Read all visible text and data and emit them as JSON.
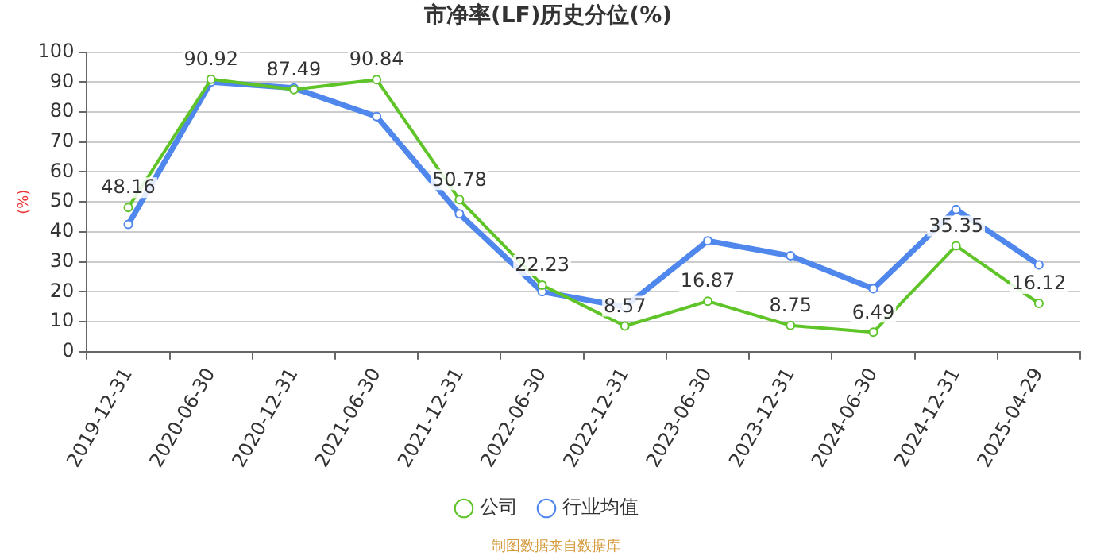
{
  "chart_data": {
    "type": "line",
    "title": "市净率(LF)历史分位(%)",
    "ylabel": "(%)",
    "categories": [
      "2019-12-31",
      "2020-06-30",
      "2020-12-31",
      "2021-06-30",
      "2021-12-31",
      "2022-06-30",
      "2022-12-31",
      "2023-06-30",
      "2023-12-31",
      "2024-06-30",
      "2024-12-31",
      "2025-04-29"
    ],
    "series": [
      {
        "name": "公司",
        "color": "#5ec428",
        "values": [
          48.16,
          90.92,
          87.49,
          90.84,
          50.78,
          22.23,
          8.57,
          16.87,
          8.75,
          6.49,
          35.35,
          16.12
        ],
        "value_labels": [
          "48.16",
          "90.92",
          "87.49",
          "90.84",
          "50.78",
          "22.23",
          "8.57",
          "16.87",
          "8.75",
          "6.49",
          "35.35",
          "16.12"
        ]
      },
      {
        "name": "行业均值",
        "color": "#5087ec",
        "values": [
          42.5,
          90,
          88,
          78.5,
          46,
          20,
          15,
          37,
          32,
          21,
          47.5,
          29
        ]
      }
    ],
    "ylim": [
      0,
      100
    ],
    "yticks": [
      0,
      10,
      20,
      30,
      40,
      50,
      60,
      70,
      80,
      90,
      100
    ],
    "grid": "y",
    "legend": "bottom",
    "marker": "circle",
    "line_style": "solid",
    "annotations": [
      "制图数据来自数据库"
    ]
  }
}
